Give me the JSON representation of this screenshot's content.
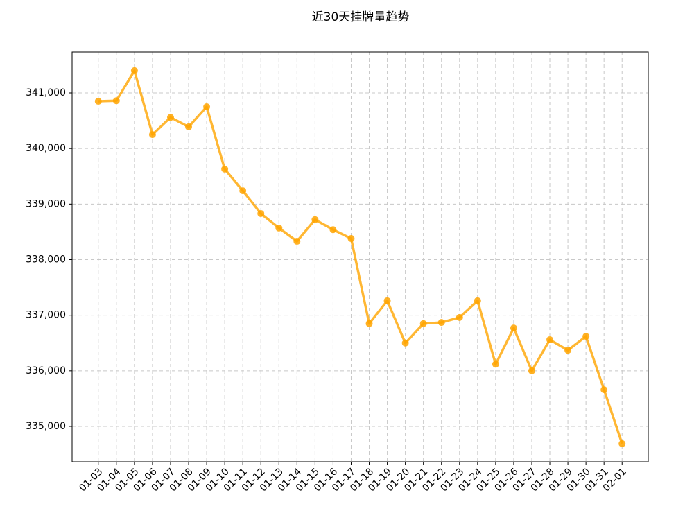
{
  "chart_data": {
    "type": "line",
    "title": "近30天挂牌量趋势",
    "categories": [
      "01-03",
      "01-04",
      "01-05",
      "01-06",
      "01-07",
      "01-08",
      "01-09",
      "01-10",
      "01-11",
      "01-12",
      "01-13",
      "01-14",
      "01-15",
      "01-16",
      "01-17",
      "01-18",
      "01-19",
      "01-20",
      "01-21",
      "01-22",
      "01-23",
      "01-24",
      "01-25",
      "01-26",
      "01-27",
      "01-28",
      "01-29",
      "01-30",
      "01-31",
      "02-01"
    ],
    "values": [
      340850,
      340860,
      341400,
      340250,
      340560,
      340390,
      340750,
      339630,
      339240,
      338830,
      338570,
      338330,
      338720,
      338540,
      338380,
      336850,
      337260,
      336500,
      336850,
      336870,
      336960,
      337260,
      336120,
      336770,
      336000,
      336560,
      336370,
      336620,
      335660,
      334690
    ],
    "color": "#ffa500",
    "ylim": [
      334364,
      341736
    ],
    "yticks": [
      {
        "value": 335000,
        "label": "335,000"
      },
      {
        "value": 336000,
        "label": "336,000"
      },
      {
        "value": 337000,
        "label": "337,000"
      },
      {
        "value": 338000,
        "label": "338,000"
      },
      {
        "value": 339000,
        "label": "339,000"
      },
      {
        "value": 340000,
        "label": "340,000"
      },
      {
        "value": 341000,
        "label": "341,000"
      }
    ],
    "grid": true
  }
}
